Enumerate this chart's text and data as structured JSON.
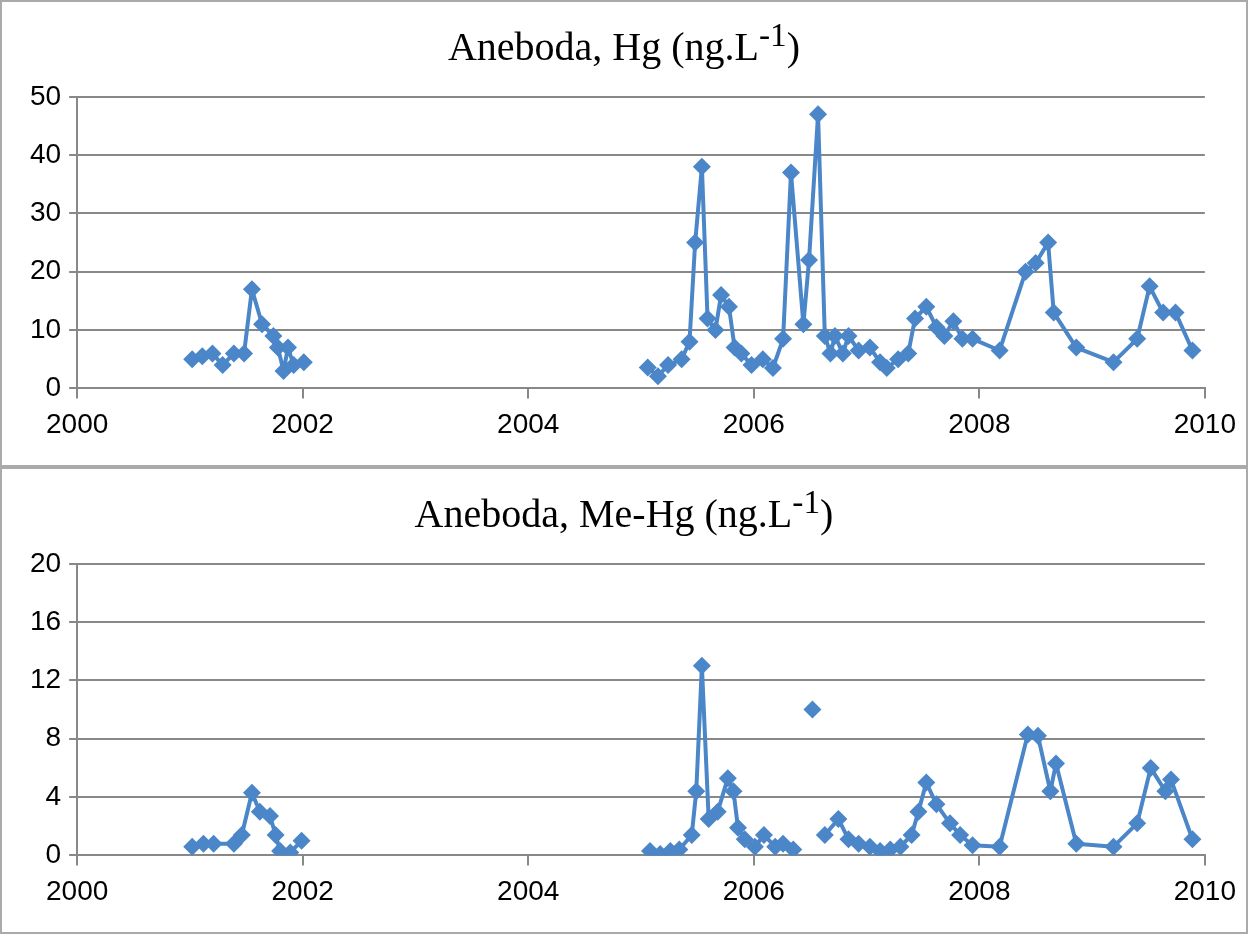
{
  "chart_data": [
    {
      "type": "line",
      "title": "Aneboda, Hg (ng.L$^{-1}$)",
      "marker": "diamond",
      "grid": "y",
      "legend": false,
      "xlim": [
        2000,
        2010
      ],
      "xticks": [
        2000,
        2002,
        2004,
        2006,
        2008,
        2010
      ],
      "ylim": [
        0,
        50
      ],
      "yticks": [
        0,
        10,
        20,
        30,
        40,
        50
      ],
      "x": [
        2001.02,
        2001.11,
        2001.2,
        2001.29,
        2001.39,
        2001.48,
        2001.55,
        2001.64,
        2001.74,
        2001.78,
        2001.83,
        2001.87,
        2001.92,
        2002.01,
        2003.5,
        2005.06,
        2005.15,
        2005.24,
        2005.36,
        2005.43,
        2005.48,
        2005.54,
        2005.59,
        2005.66,
        2005.71,
        2005.78,
        2005.83,
        2005.89,
        2005.98,
        2006.08,
        2006.17,
        2006.26,
        2006.33,
        2006.44,
        2006.49,
        2006.57,
        2006.63,
        2006.68,
        2006.72,
        2006.79,
        2006.84,
        2006.93,
        2007.03,
        2007.12,
        2007.18,
        2007.28,
        2007.37,
        2007.43,
        2007.53,
        2007.62,
        2007.69,
        2007.77,
        2007.85,
        2007.94,
        2008.18,
        2008.41,
        2008.5,
        2008.61,
        2008.66,
        2008.86,
        2009.19,
        2009.4,
        2009.51,
        2009.63,
        2009.74,
        2009.89
      ],
      "series": [
        {
          "color": "#4a86c8",
          "values": [
            5,
            5.5,
            6,
            4,
            6,
            6,
            17,
            11,
            9,
            7,
            3,
            7,
            4,
            4.5,
            null,
            3.6,
            2.1,
            4,
            5,
            8,
            25,
            38,
            12,
            10,
            16,
            14,
            7,
            6,
            4,
            5,
            3.5,
            8.5,
            37,
            11,
            22,
            47,
            9,
            6,
            9,
            6,
            9,
            6.5,
            7,
            4.5,
            3.5,
            5,
            6,
            12,
            14,
            10.5,
            9,
            11.5,
            8.5,
            8.5,
            6.5,
            20,
            21.5,
            25,
            13,
            7,
            4.5,
            8.5,
            17.5,
            13,
            13,
            6.5
          ]
        }
      ]
    },
    {
      "type": "line",
      "title": "Aneboda, Me-Hg (ng.L$^{-1}$)",
      "marker": "diamond",
      "grid": "y",
      "legend": false,
      "xlim": [
        2000,
        2010
      ],
      "xticks": [
        2000,
        2002,
        2004,
        2006,
        2008,
        2010
      ],
      "ylim": [
        0,
        20
      ],
      "yticks": [
        0,
        4,
        8,
        12,
        16,
        20
      ],
      "x": [
        2001.02,
        2001.12,
        2001.21,
        2001.39,
        2001.46,
        2001.55,
        2001.62,
        2001.71,
        2001.76,
        2001.8,
        2001.89,
        2001.99,
        2003.5,
        2005.08,
        2005.17,
        2005.26,
        2005.34,
        2005.45,
        2005.49,
        2005.54,
        2005.6,
        2005.68,
        2005.77,
        2005.82,
        2005.86,
        2005.92,
        2006.01,
        2006.09,
        2006.19,
        2006.26,
        2006.35,
        2006.43,
        2006.52,
        2006.58,
        2006.63,
        2006.75,
        2006.84,
        2006.93,
        2007.03,
        2007.12,
        2007.21,
        2007.3,
        2007.4,
        2007.46,
        2007.53,
        2007.62,
        2007.74,
        2007.83,
        2007.94,
        2008.18,
        2008.43,
        2008.52,
        2008.63,
        2008.68,
        2008.86,
        2009.19,
        2009.4,
        2009.52,
        2009.65,
        2009.7,
        2009.89
      ],
      "series": [
        {
          "color": "#4a86c8",
          "values": [
            0.6,
            0.8,
            0.8,
            0.8,
            1.4,
            4.3,
            3,
            2.7,
            1.4,
            0.3,
            0.2,
            1,
            null,
            0.3,
            0.1,
            0.3,
            0.4,
            1.4,
            4.4,
            13,
            2.5,
            3,
            5.3,
            4.4,
            1.9,
            1.1,
            0.6,
            1.4,
            0.6,
            0.8,
            0.4,
            null,
            10,
            null,
            1.4,
            2.5,
            1.1,
            0.8,
            0.6,
            0.3,
            0.4,
            0.6,
            1.4,
            3,
            5,
            3.5,
            2.2,
            1.4,
            0.7,
            0.6,
            8.3,
            8.2,
            4.4,
            6.3,
            0.8,
            0.6,
            2.2,
            6,
            4.4,
            5.2,
            1.1
          ]
        }
      ]
    }
  ]
}
